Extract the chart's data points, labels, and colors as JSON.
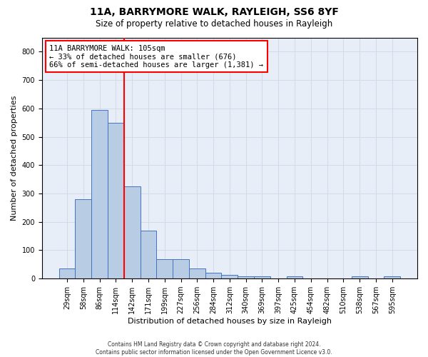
{
  "title1": "11A, BARRYMORE WALK, RAYLEIGH, SS6 8YF",
  "title2": "Size of property relative to detached houses in Rayleigh",
  "xlabel": "Distribution of detached houses by size in Rayleigh",
  "ylabel": "Number of detached properties",
  "footer": "Contains HM Land Registry data © Crown copyright and database right 2024.\nContains public sector information licensed under the Open Government Licence v3.0.",
  "bar_labels": [
    "29sqm",
    "58sqm",
    "86sqm",
    "114sqm",
    "142sqm",
    "171sqm",
    "199sqm",
    "227sqm",
    "256sqm",
    "284sqm",
    "312sqm",
    "340sqm",
    "369sqm",
    "397sqm",
    "425sqm",
    "454sqm",
    "482sqm",
    "510sqm",
    "538sqm",
    "567sqm",
    "595sqm"
  ],
  "bar_values": [
    35,
    280,
    595,
    550,
    325,
    170,
    68,
    68,
    35,
    20,
    12,
    7,
    7,
    0,
    8,
    0,
    0,
    0,
    8,
    0,
    8
  ],
  "bar_color": "#b8cce4",
  "bar_edge_color": "#4472c4",
  "vline_x": 3.5,
  "vline_color": "red",
  "annotation_title": "11A BARRYMORE WALK: 105sqm",
  "annotation_line1": "← 33% of detached houses are smaller (676)",
  "annotation_line2": "66% of semi-detached houses are larger (1,381) →",
  "annotation_box_color": "red",
  "ylim": [
    0,
    850
  ],
  "yticks": [
    0,
    100,
    200,
    300,
    400,
    500,
    600,
    700,
    800
  ],
  "grid_color": "#d0d8e8",
  "background_color": "#e8eef8",
  "title1_fontsize": 10,
  "title2_fontsize": 8.5,
  "xlabel_fontsize": 8,
  "ylabel_fontsize": 8,
  "tick_fontsize": 7,
  "annotation_fontsize": 7.5,
  "footer_fontsize": 5.5
}
